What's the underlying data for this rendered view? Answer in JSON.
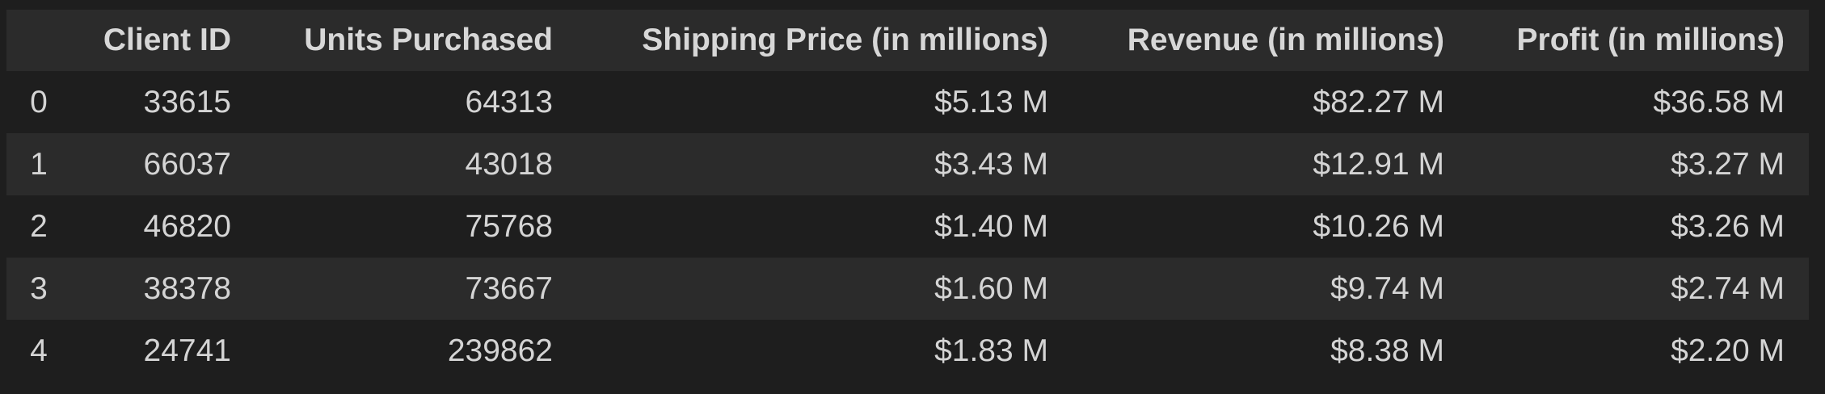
{
  "table": {
    "columns": [
      "",
      "Client ID",
      "Units Purchased",
      "Shipping Price (in millions)",
      "Revenue (in millions)",
      "Profit (in millions)"
    ],
    "rows": [
      [
        "0",
        "33615",
        "64313",
        "$5.13 M",
        "$82.27 M",
        "$36.58 M"
      ],
      [
        "1",
        "66037",
        "43018",
        "$3.43 M",
        "$12.91 M",
        "$3.27 M"
      ],
      [
        "2",
        "46820",
        "75768",
        "$1.40 M",
        "$10.26 M",
        "$3.26 M"
      ],
      [
        "3",
        "38378",
        "73667",
        "$1.60 M",
        "$9.74 M",
        "$2.74 M"
      ],
      [
        "4",
        "24741",
        "239862",
        "$1.83 M",
        "$8.38 M",
        "$2.20 M"
      ]
    ]
  },
  "colors": {
    "background": "#1e1e1e",
    "stripe": "#2b2b2b",
    "text": "#d4d4d4"
  }
}
